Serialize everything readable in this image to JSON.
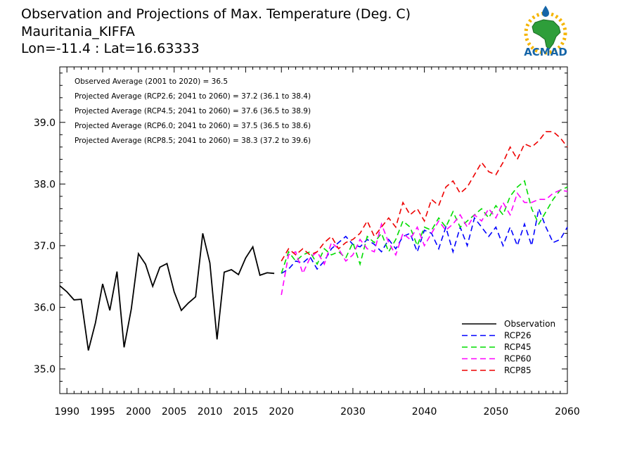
{
  "title_lines": [
    "Observation and Projections of Max. Temperature (Deg. C)",
    "Mauritania_KIFFA",
    "Lon=-11.4 : Lat=16.63333"
  ],
  "logo": {
    "text": "ACMAD",
    "brand_color": "#1565a8",
    "accent_color": "#f4b400"
  },
  "notes": [
    "Observed Average (2001 to 2020) = 36.5",
    "Projected Average (RCP2.6; 2041 to 2060) = 37.2 (36.1 to 38.4)",
    "Projected Average (RCP4.5; 2041 to 2060) = 37.6 (36.5 to 38.9)",
    "Projected Average (RCP6.0; 2041 to 2060) = 37.5 (36.5 to 38.6)",
    "Projected Average (RCP8.5; 2041 to 2060) = 38.3 (37.2 to 39.6)"
  ],
  "chart_data": {
    "type": "line",
    "xlim": [
      1989,
      2060
    ],
    "ylim": [
      34.6,
      39.9
    ],
    "x_ticks": [
      1990,
      1995,
      2000,
      2005,
      2010,
      2015,
      2020,
      2030,
      2040,
      2050,
      2060
    ],
    "y_ticks": [
      "35.0",
      "36.0",
      "37.0",
      "38.0",
      "39.0"
    ],
    "legend_position": "bottom-right",
    "series": [
      {
        "name": "Observation",
        "color": "#000000",
        "dashed": false,
        "x": [
          1989,
          1990,
          1991,
          1992,
          1993,
          1994,
          1995,
          1996,
          1997,
          1998,
          1999,
          2000,
          2001,
          2002,
          2003,
          2004,
          2005,
          2006,
          2007,
          2008,
          2009,
          2010,
          2011,
          2012,
          2013,
          2014,
          2015,
          2016,
          2017,
          2018,
          2019
        ],
        "y": [
          36.35,
          36.25,
          36.12,
          36.13,
          35.3,
          35.75,
          36.38,
          35.95,
          36.58,
          35.35,
          35.97,
          36.87,
          36.7,
          36.34,
          36.65,
          36.71,
          36.25,
          35.95,
          36.07,
          36.17,
          37.2,
          36.72,
          35.48,
          36.57,
          36.61,
          36.53,
          36.8,
          36.98,
          36.52,
          36.56,
          36.55
        ]
      },
      {
        "name": "RCP26",
        "color": "#0000ff",
        "dashed": true,
        "x": [
          2020,
          2021,
          2022,
          2023,
          2024,
          2025,
          2026,
          2027,
          2028,
          2029,
          2030,
          2031,
          2032,
          2033,
          2034,
          2035,
          2036,
          2037,
          2038,
          2039,
          2040,
          2041,
          2042,
          2043,
          2044,
          2045,
          2046,
          2047,
          2048,
          2049,
          2050,
          2051,
          2052,
          2053,
          2054,
          2055,
          2056,
          2057,
          2058,
          2059,
          2060
        ],
        "y": [
          36.55,
          36.62,
          36.75,
          36.72,
          36.82,
          36.62,
          36.75,
          36.95,
          37.05,
          37.15,
          37.02,
          36.98,
          37.1,
          37.02,
          36.9,
          37.1,
          36.95,
          37.15,
          37.2,
          36.9,
          37.25,
          37.2,
          36.95,
          37.3,
          36.9,
          37.3,
          37.0,
          37.45,
          37.3,
          37.15,
          37.3,
          37.0,
          37.3,
          37.0,
          37.35,
          37.0,
          37.6,
          37.3,
          37.05,
          37.1,
          37.3
        ]
      },
      {
        "name": "RCP45",
        "color": "#00dd00",
        "dashed": true,
        "x": [
          2020,
          2021,
          2022,
          2023,
          2024,
          2025,
          2026,
          2027,
          2028,
          2029,
          2030,
          2031,
          2032,
          2033,
          2034,
          2035,
          2036,
          2037,
          2038,
          2039,
          2040,
          2041,
          2042,
          2043,
          2044,
          2045,
          2046,
          2047,
          2048,
          2049,
          2050,
          2051,
          2052,
          2053,
          2054,
          2055,
          2056,
          2057,
          2058,
          2059,
          2060
        ],
        "y": [
          36.55,
          36.9,
          36.75,
          36.85,
          36.9,
          36.7,
          36.95,
          36.85,
          36.9,
          36.8,
          37.05,
          36.7,
          37.15,
          37.05,
          37.2,
          36.9,
          37.1,
          37.4,
          37.3,
          37.0,
          37.3,
          37.25,
          37.45,
          37.3,
          37.55,
          37.3,
          37.4,
          37.5,
          37.6,
          37.45,
          37.65,
          37.5,
          37.8,
          37.95,
          38.05,
          37.6,
          37.35,
          37.55,
          37.75,
          37.9,
          37.95
        ]
      },
      {
        "name": "RCP60",
        "color": "#ff00ff",
        "dashed": true,
        "x": [
          2020,
          2021,
          2022,
          2023,
          2024,
          2025,
          2026,
          2027,
          2028,
          2029,
          2030,
          2031,
          2032,
          2033,
          2034,
          2035,
          2036,
          2037,
          2038,
          2039,
          2040,
          2041,
          2042,
          2043,
          2044,
          2045,
          2046,
          2047,
          2048,
          2049,
          2050,
          2051,
          2052,
          2053,
          2054,
          2055,
          2056,
          2057,
          2058,
          2059,
          2060
        ],
        "y": [
          36.2,
          36.85,
          36.9,
          36.55,
          36.8,
          36.9,
          36.7,
          37.05,
          36.95,
          36.75,
          36.85,
          37.1,
          36.95,
          36.9,
          37.35,
          37.05,
          36.85,
          37.2,
          37.1,
          37.3,
          37.0,
          37.2,
          37.4,
          37.25,
          37.35,
          37.5,
          37.3,
          37.5,
          37.4,
          37.6,
          37.45,
          37.7,
          37.5,
          37.85,
          37.7,
          37.7,
          37.75,
          37.75,
          37.85,
          37.9,
          37.88
        ]
      },
      {
        "name": "RCP85",
        "color": "#ee0000",
        "dashed": true,
        "x": [
          2020,
          2021,
          2022,
          2023,
          2024,
          2025,
          2026,
          2027,
          2028,
          2029,
          2030,
          2031,
          2032,
          2033,
          2034,
          2035,
          2036,
          2037,
          2038,
          2039,
          2040,
          2041,
          2042,
          2043,
          2044,
          2045,
          2046,
          2047,
          2048,
          2049,
          2050,
          2051,
          2052,
          2053,
          2054,
          2055,
          2056,
          2057,
          2058,
          2059,
          2060
        ],
        "y": [
          36.75,
          36.95,
          36.85,
          36.95,
          36.85,
          36.9,
          37.05,
          37.15,
          36.95,
          37.05,
          37.1,
          37.2,
          37.4,
          37.15,
          37.3,
          37.45,
          37.3,
          37.7,
          37.5,
          37.6,
          37.4,
          37.75,
          37.65,
          37.95,
          38.05,
          37.85,
          37.95,
          38.15,
          38.35,
          38.2,
          38.15,
          38.35,
          38.6,
          38.4,
          38.65,
          38.6,
          38.7,
          38.85,
          38.85,
          38.75,
          38.6
        ]
      }
    ]
  }
}
